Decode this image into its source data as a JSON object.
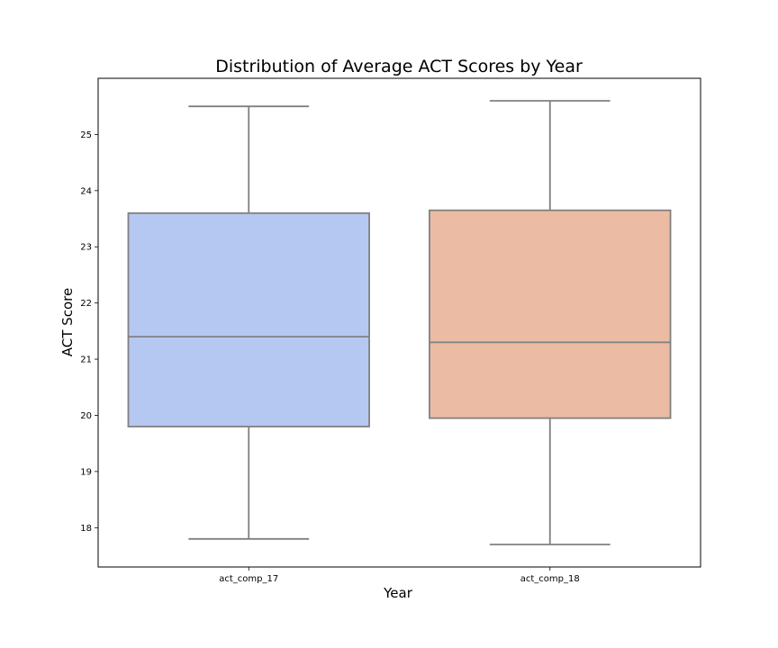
{
  "chart_data": {
    "type": "box",
    "title": "Distribution of Average ACT Scores by Year",
    "xlabel": "Year",
    "ylabel": "ACT Score",
    "ylim": [
      17.3,
      26.0
    ],
    "yticks": [
      18,
      19,
      20,
      21,
      22,
      23,
      24,
      25
    ],
    "ytick_labels": [
      "18",
      "19",
      "20",
      "21",
      "22",
      "23",
      "24",
      "25"
    ],
    "grid": false,
    "categories": [
      "act_comp_17",
      "act_comp_18"
    ],
    "boxes": [
      {
        "category": "act_comp_17",
        "whisker_low": 17.8,
        "q1": 19.8,
        "median": 21.4,
        "q3": 23.6,
        "whisker_high": 25.5,
        "color": "#b5c8f2"
      },
      {
        "category": "act_comp_18",
        "whisker_low": 17.7,
        "q1": 19.95,
        "median": 21.3,
        "q3": 23.65,
        "whisker_high": 25.6,
        "color": "#ebbba4"
      }
    ],
    "line_color": "#808080"
  }
}
